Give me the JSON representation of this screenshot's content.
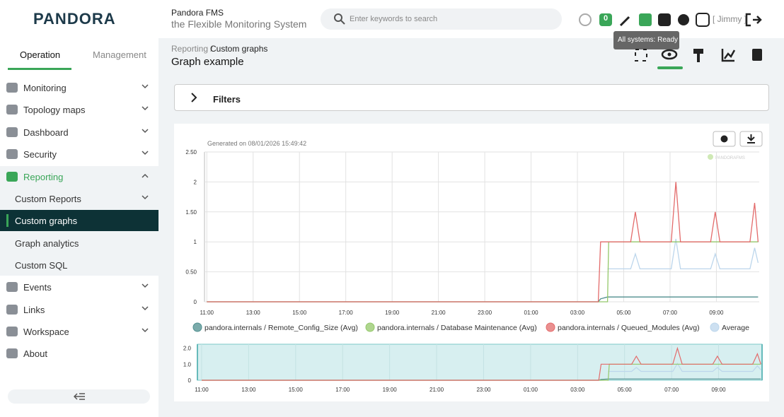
{
  "header": {
    "logo": "PANDORA",
    "product": "Pandora FMS",
    "tagline": "the Flexible Monitoring System",
    "search_placeholder": "Enter keywords to search",
    "alerts": 0,
    "user": "[ Jimmy ]",
    "tooltip": "All systems: Ready"
  },
  "sidebar": {
    "tabs": [
      "Operation",
      "Management"
    ],
    "menu": [
      "Monitoring",
      "Topology maps",
      "Dashboard",
      "Security",
      "Reporting"
    ],
    "submenu": [
      "Custom Reports",
      "Custom graphs",
      "Graph analytics",
      "Custom SQL"
    ],
    "menu_after": [
      "Events",
      "Links",
      "Workspace",
      "About"
    ]
  },
  "breadcrumb": {
    "parent": "Reporting /",
    "current": "Custom graphs"
  },
  "page_title": "Graph example",
  "filters": "Filters",
  "chart_data": {
    "type": "line",
    "generated": "Generated on 08/01/2026 15:49:42",
    "watermark": "PANDORAFMS",
    "x": [
      0,
      16.9,
      17.0,
      17.3,
      17.35,
      18.3,
      18.5,
      18.7,
      20.05,
      20.25,
      20.45,
      21.75,
      21.95,
      22.15,
      23.45,
      23.65,
      23.8
    ],
    "xlim": [
      -0.1,
      23.85
    ],
    "xticks": [
      {
        "value": 0,
        "label": "11:00"
      },
      {
        "value": 2,
        "label": "13:00"
      },
      {
        "value": 4,
        "label": "15:00"
      },
      {
        "value": 6,
        "label": "17:00"
      },
      {
        "value": 8,
        "label": "19:00"
      },
      {
        "value": 10,
        "label": "21:00"
      },
      {
        "value": 12,
        "label": "23:00"
      },
      {
        "value": 14,
        "label": "01:00"
      },
      {
        "value": 16,
        "label": "03:00"
      },
      {
        "value": 18,
        "label": "05:00"
      },
      {
        "value": 20,
        "label": "07:00"
      },
      {
        "value": 22,
        "label": "09:00"
      }
    ],
    "ylim": [
      0,
      2.5
    ],
    "yticks": [
      0,
      {
        "value": 0.5,
        "label": "0.50"
      },
      1,
      {
        "value": 1.5,
        "label": "1.50"
      },
      2,
      {
        "value": 2.5,
        "label": "2.50"
      }
    ],
    "grid": true,
    "series": [
      {
        "name": "pandora.internals / Remote_Config_Size (Avg)",
        "color": "#4f8f8f",
        "values": [
          0,
          0,
          0.05,
          0.08,
          0.08,
          0.08,
          0.08,
          0.08,
          0.08,
          0.08,
          0.08,
          0.08,
          0.08,
          0.08,
          0.08,
          0.08,
          0.08
        ]
      },
      {
        "name": "pandora.internals / Database Maintenance (Avg)",
        "color": "#94c86a",
        "values": [
          0,
          0,
          0,
          0,
          1,
          1,
          1,
          1,
          1,
          1,
          1,
          1,
          1,
          1,
          1,
          1,
          1
        ]
      },
      {
        "name": "pandora.internals / Queued_Modules (Avg)",
        "color": "#e36b6b",
        "values": [
          0,
          0,
          1,
          1,
          1,
          1,
          1.5,
          1,
          1,
          2,
          1,
          1,
          1.5,
          1,
          1,
          1.65,
          1
        ]
      },
      {
        "name": "Average",
        "color": "#bcd6ec",
        "values": [
          null,
          null,
          null,
          0.55,
          0.55,
          0.55,
          0.8,
          0.55,
          0.55,
          1.05,
          0.55,
          0.55,
          0.8,
          0.55,
          0.55,
          0.9,
          0.65
        ]
      }
    ],
    "navigator": {
      "xlim": [
        -0.18,
        23.85
      ],
      "ylim": [
        0,
        2.25
      ],
      "yticks": [
        0,
        {
          "value": 1,
          "label": "1.0"
        },
        {
          "value": 2,
          "label": "2.0"
        }
      ]
    }
  }
}
